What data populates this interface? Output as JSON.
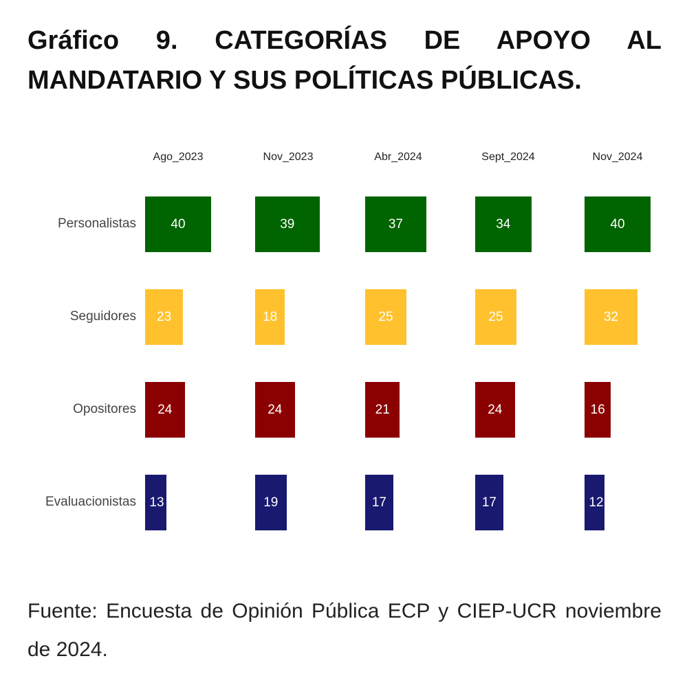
{
  "title": "Gráfico 9. CATEGORÍAS DE APOYO AL MANDATARIO Y SUS POLÍTICAS PÚBLICAS.",
  "source": "Fuente: Encuesta de Opinión Pública ECP y CIEP-UCR noviembre de 2024.",
  "chart_data": {
    "type": "table",
    "title": "CATEGORÍAS DE APOYO AL MANDATARIO Y SUS POLÍTICAS PÚBLICAS",
    "columns": [
      "Ago_2023",
      "Nov_2023",
      "Abr_2024",
      "Sept_2024",
      "Nov_2024"
    ],
    "series": [
      {
        "name": "Personalistas",
        "color": "#006400",
        "values": [
          40,
          39,
          37,
          34,
          40
        ]
      },
      {
        "name": "Seguidores",
        "color": "#FFC22E",
        "values": [
          23,
          18,
          25,
          25,
          32
        ]
      },
      {
        "name": "Opositores",
        "color": "#8B0000",
        "values": [
          24,
          24,
          21,
          24,
          16
        ]
      },
      {
        "name": "Evaluacionistas",
        "color": "#191970",
        "values": [
          13,
          19,
          17,
          17,
          12
        ]
      }
    ]
  }
}
